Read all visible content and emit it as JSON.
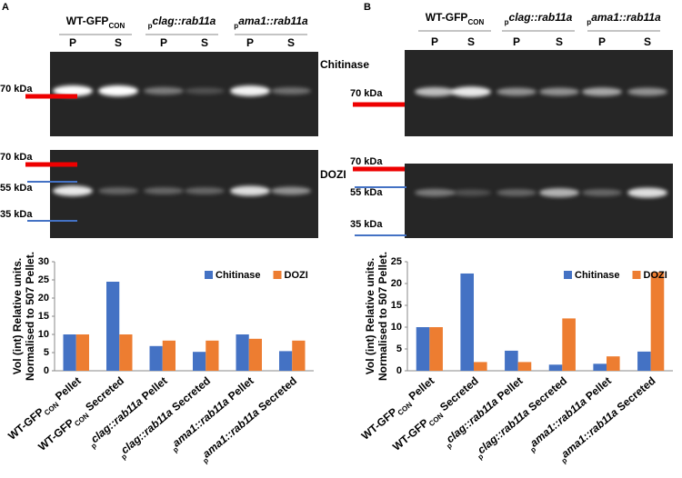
{
  "panels": [
    {
      "label": "A",
      "groups": [
        [
          {
            "t": "WT-GFP"
          },
          {
            "t": "CON",
            "sub": true
          }
        ],
        [
          {
            "t": "p",
            "sub": true
          },
          {
            "t": "clag::rab11a",
            "italic": true
          }
        ],
        [
          {
            "t": "p",
            "sub": true
          },
          {
            "t": "ama1::rab11a",
            "italic": true
          }
        ]
      ],
      "lanes": [
        "P",
        "S",
        "P",
        "S",
        "P",
        "S"
      ],
      "blots": [
        {
          "name": "Chitinase",
          "markers": [
            "70 kDa"
          ]
        },
        {
          "name": "DOZI",
          "markers": [
            "70 kDa",
            "55 kDa",
            "35 kDa"
          ]
        }
      ]
    },
    {
      "label": "B",
      "groups": [
        [
          {
            "t": "WT-GFP"
          },
          {
            "t": "CON",
            "sub": true
          }
        ],
        [
          {
            "t": "p",
            "sub": true
          },
          {
            "t": "clag::rab11a",
            "italic": true
          }
        ],
        [
          {
            "t": "p",
            "sub": true
          },
          {
            "t": "ama1::rab11a",
            "italic": true
          }
        ]
      ],
      "lanes": [
        "P",
        "S",
        "P",
        "S",
        "P",
        "S"
      ],
      "blots": [
        {
          "markers": [
            "70 kDa"
          ]
        },
        {
          "markers": [
            "70 kDa",
            "55 kDa",
            "35 kDa"
          ]
        }
      ]
    }
  ],
  "chart_data": [
    {
      "type": "bar",
      "ylabel": [
        "Vol (int) Relative units.",
        "Normalised to 507 Pellet."
      ],
      "categories": [
        [
          {
            "t": "WT-GFP"
          },
          {
            "t": "CON",
            "sub": true
          },
          {
            "t": " Pellet"
          }
        ],
        [
          {
            "t": "WT-GFP"
          },
          {
            "t": "CON",
            "sub": true
          },
          {
            "t": " Secreted"
          }
        ],
        [
          {
            "t": "p",
            "sub": true
          },
          {
            "t": "clag::rab11a",
            "italic": true
          },
          {
            "t": " Pellet"
          }
        ],
        [
          {
            "t": "p",
            "sub": true
          },
          {
            "t": "clag::rab11a",
            "italic": true
          },
          {
            "t": " Secreted"
          }
        ],
        [
          {
            "t": "p",
            "sub": true
          },
          {
            "t": "ama1::rab11a",
            "italic": true
          },
          {
            "t": " Pellet"
          }
        ],
        [
          {
            "t": "p",
            "sub": true
          },
          {
            "t": "ama1::rab11a",
            "italic": true
          },
          {
            "t": " Secreted"
          }
        ]
      ],
      "series": [
        {
          "name": "Chitinase",
          "color": "#4472c4",
          "values": [
            10,
            24.5,
            6.8,
            5.2,
            10,
            5.4
          ]
        },
        {
          "name": "DOZI",
          "color": "#ed7d31",
          "values": [
            10,
            10,
            8.3,
            8.3,
            8.8,
            8.3
          ]
        }
      ],
      "ylim": [
        0,
        30
      ],
      "yticks": [
        0,
        5,
        10,
        15,
        20,
        25,
        30
      ],
      "grid": false,
      "legend": "top-right"
    },
    {
      "type": "bar",
      "ylabel": [
        "Vol (int) Relative units.",
        "Normalised to 507 Pellet."
      ],
      "categories": [
        [
          {
            "t": "WT-GFP"
          },
          {
            "t": "CON",
            "sub": true
          },
          {
            "t": " Pellet"
          }
        ],
        [
          {
            "t": "WT-GFP"
          },
          {
            "t": "CON",
            "sub": true
          },
          {
            "t": " Secreted"
          }
        ],
        [
          {
            "t": "p",
            "sub": true
          },
          {
            "t": "clag::rab11a",
            "italic": true
          },
          {
            "t": " Pellet"
          }
        ],
        [
          {
            "t": "p",
            "sub": true
          },
          {
            "t": "clag::rab11a",
            "italic": true
          },
          {
            "t": " Secreted"
          }
        ],
        [
          {
            "t": "p",
            "sub": true
          },
          {
            "t": "ama1::rab11a",
            "italic": true
          },
          {
            "t": " Pellet"
          }
        ],
        [
          {
            "t": "p",
            "sub": true
          },
          {
            "t": "ama1::rab11a",
            "italic": true
          },
          {
            "t": " Secreted"
          }
        ]
      ],
      "series": [
        {
          "name": "Chitinase",
          "color": "#4472c4",
          "values": [
            10,
            22.3,
            4.6,
            1.4,
            1.6,
            4.4
          ]
        },
        {
          "name": "DOZI",
          "color": "#ed7d31",
          "values": [
            10,
            2,
            2,
            12,
            3.3,
            22.6
          ]
        }
      ],
      "ylim": [
        0,
        25
      ],
      "yticks": [
        0,
        5,
        10,
        15,
        20,
        25
      ],
      "grid": false,
      "legend": "top-right"
    }
  ]
}
